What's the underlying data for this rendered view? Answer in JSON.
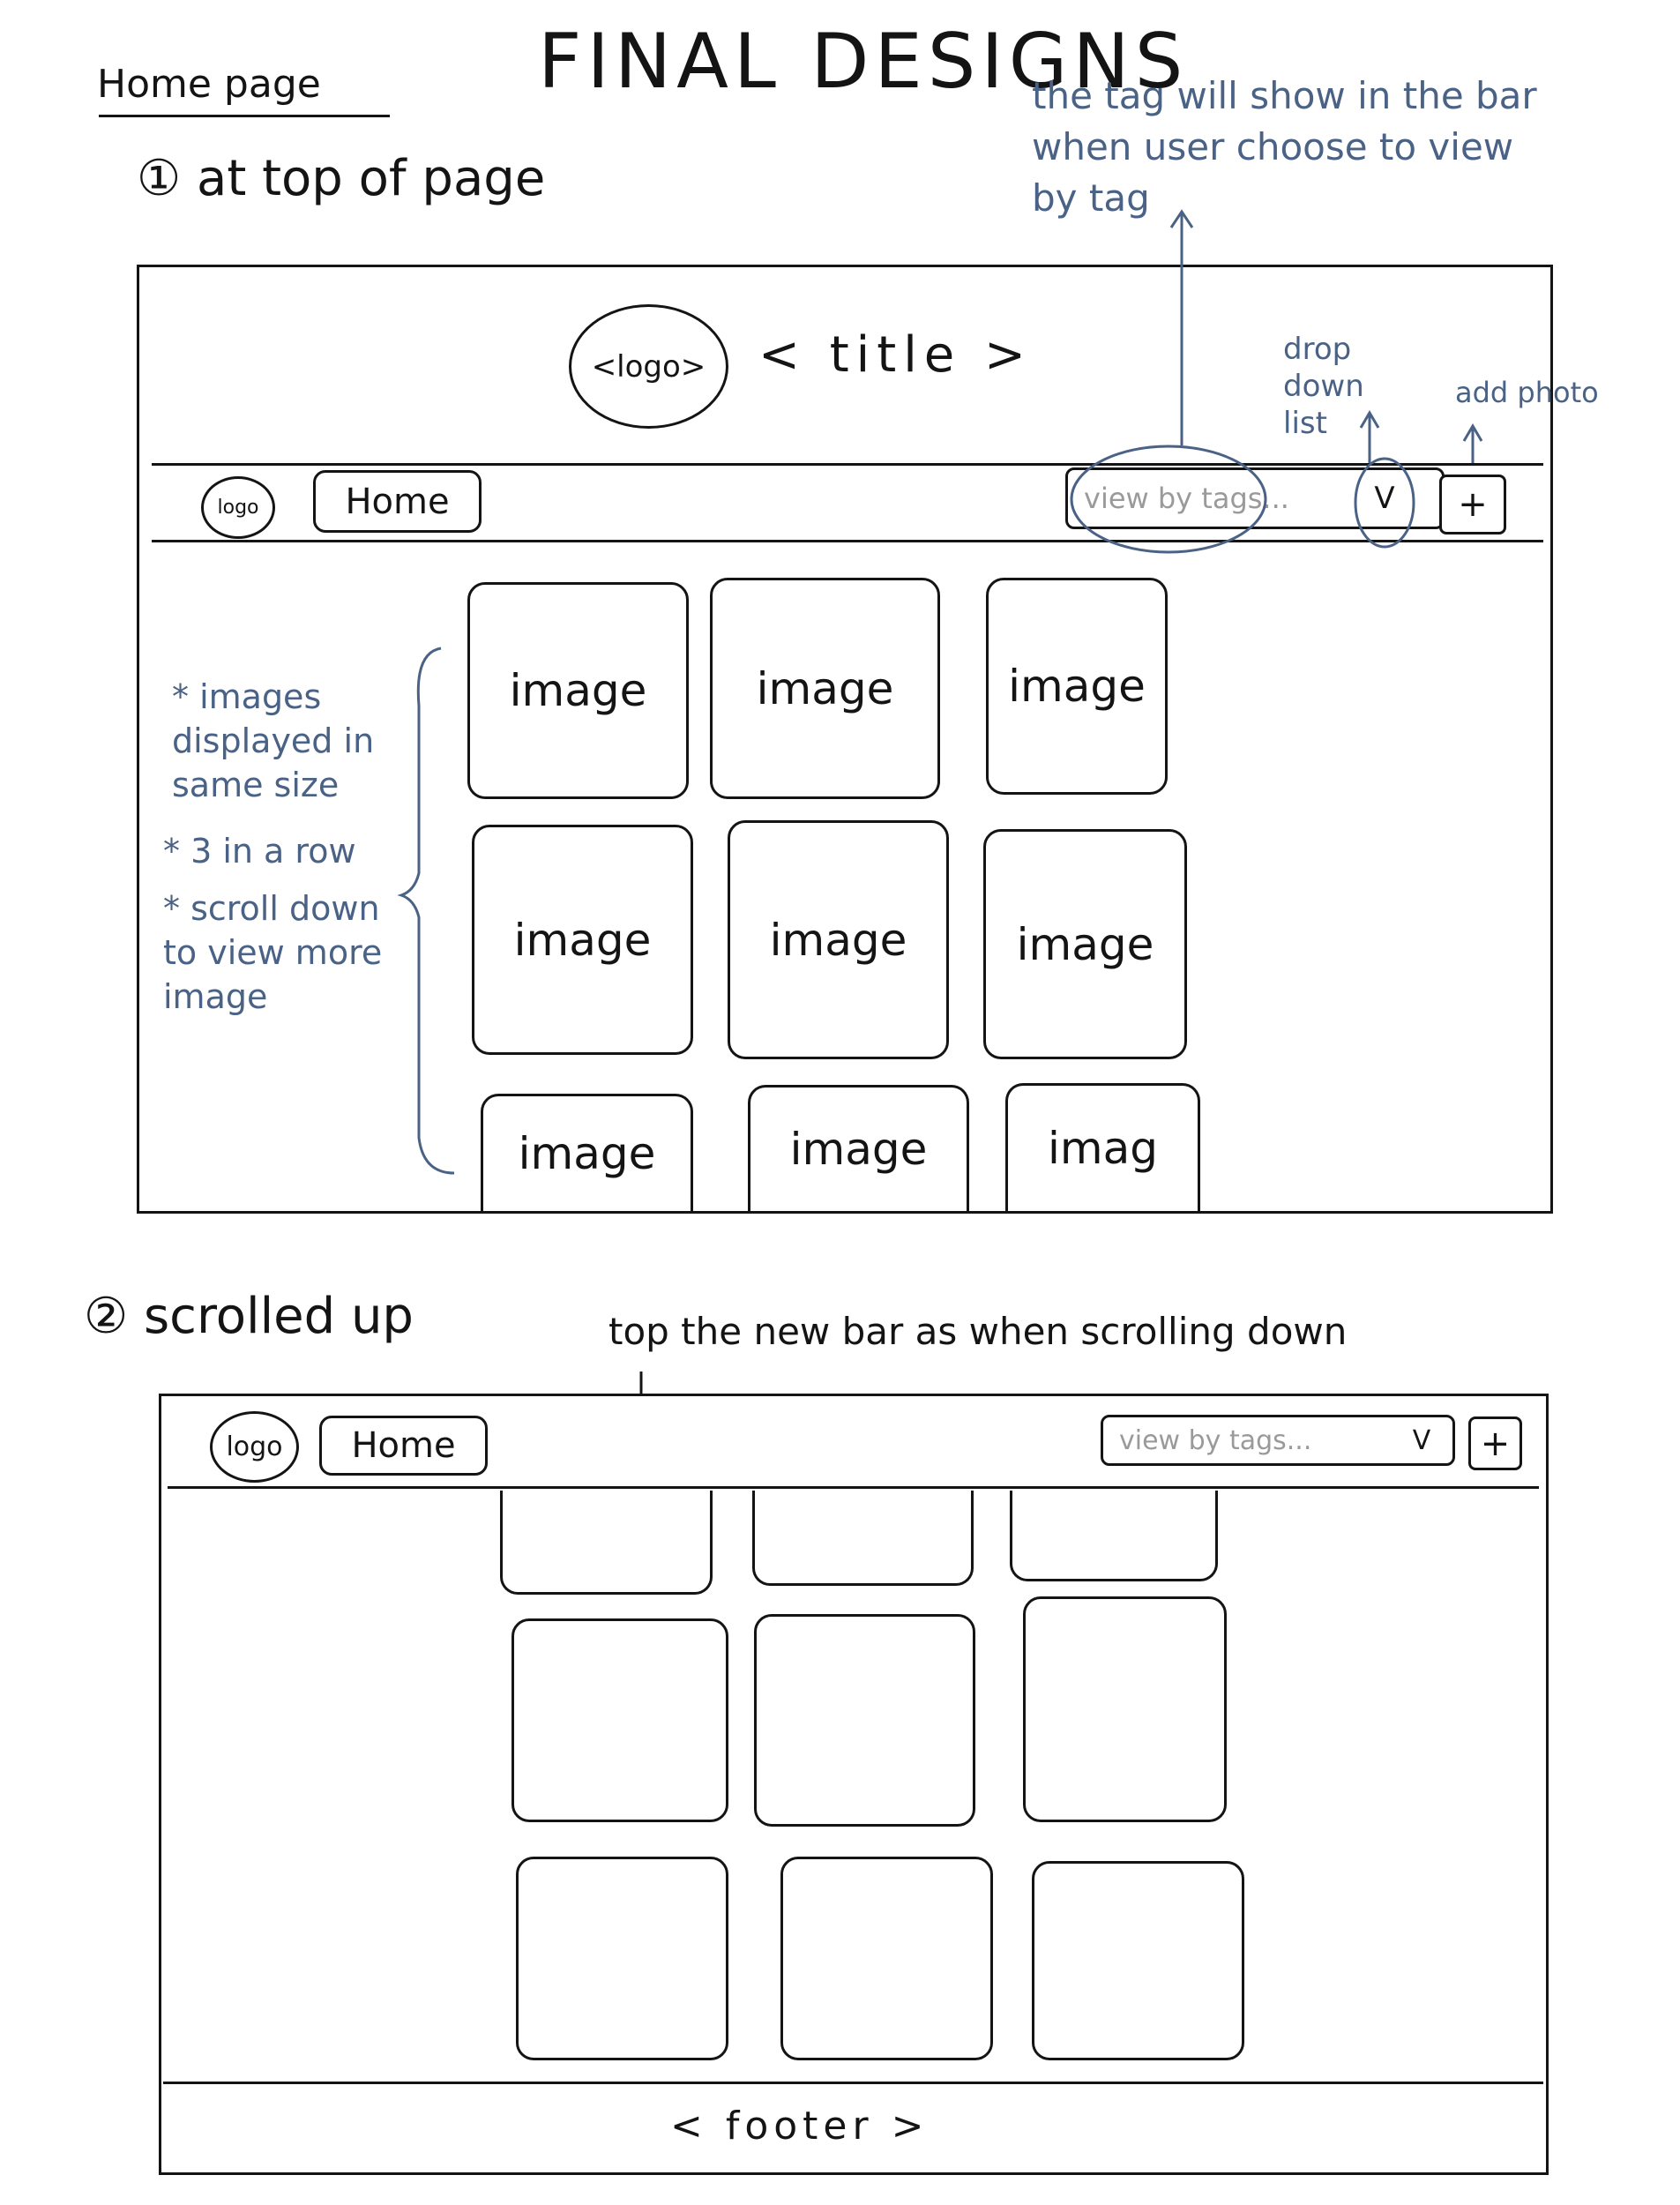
{
  "header": {
    "page_label": "Home page",
    "heading": "FINAL DESIGNS"
  },
  "section1": {
    "label": "① at top of page",
    "banner": {
      "logo": "<logo>",
      "title": "< title >"
    },
    "navbar": {
      "logo": "logo",
      "home_label": "Home",
      "search_placeholder": "view by tags...",
      "dropdown_glyph": "V",
      "add_glyph": "+"
    },
    "cards": [
      "image",
      "image",
      "image",
      "image",
      "image",
      "image",
      "image",
      "image",
      "imag"
    ],
    "notes": {
      "tag_bar": "the tag will show in the bar when user choose to view by tag",
      "dropdown": "drop down list",
      "add_photo": "add photo",
      "grid": [
        "* images displayed in same size",
        "* 3 in a row",
        "* scroll down to view more image"
      ]
    }
  },
  "section2": {
    "label": "② scrolled up",
    "note": "top the new bar as when scrolling down",
    "navbar": {
      "logo": "logo",
      "home_label": "Home",
      "search_placeholder": "view by tags...",
      "dropdown_glyph": "V",
      "add_glyph": "+"
    },
    "footer": "< footer >"
  }
}
